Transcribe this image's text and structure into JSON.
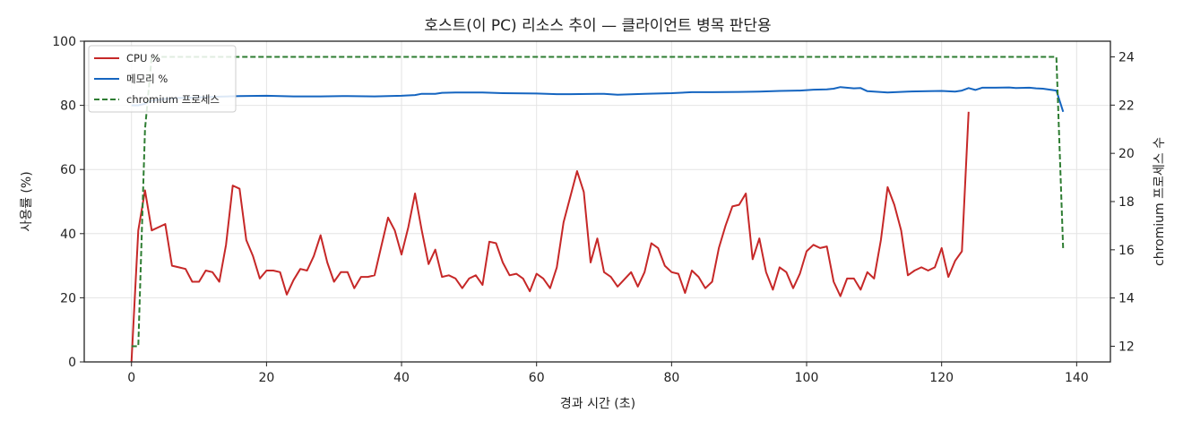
{
  "chart_data": {
    "type": "line",
    "title": "호스트(이 PC) 리소스 추이 — 클라이언트 병목 판단용",
    "xlabel": "경과 시간 (초)",
    "ylabel": "사용률 (%)",
    "y2label": "chromium 프로세스 수",
    "xlim": [
      -7,
      145
    ],
    "ylim": [
      0,
      100
    ],
    "y2lim": [
      11.35,
      24.65
    ],
    "x_ticks": [
      "0",
      "20",
      "40",
      "60",
      "80",
      "100",
      "120",
      "140"
    ],
    "y_ticks": [
      "0",
      "20",
      "40",
      "60",
      "80",
      "100"
    ],
    "y2_ticks": [
      "12",
      "14",
      "16",
      "18",
      "20",
      "22",
      "24"
    ],
    "grid": true,
    "legend_position": "top-left",
    "colors": {
      "cpu": "#c62828",
      "mem": "#1565c0",
      "proc": "#2e7d32"
    },
    "series": [
      {
        "name": "CPU %",
        "axis": "left",
        "points": [
          [
            0,
            0
          ],
          [
            1,
            41
          ],
          [
            2,
            53.5
          ],
          [
            3,
            41
          ],
          [
            5,
            43
          ],
          [
            6,
            30
          ],
          [
            7,
            29.5
          ],
          [
            8,
            29
          ],
          [
            9,
            25
          ],
          [
            10,
            25
          ],
          [
            11,
            28.5
          ],
          [
            12,
            28
          ],
          [
            13,
            25
          ],
          [
            14,
            36.5
          ],
          [
            15,
            55
          ],
          [
            16,
            54
          ],
          [
            17,
            38
          ],
          [
            18,
            33
          ],
          [
            19,
            26
          ],
          [
            20,
            28.5
          ],
          [
            21,
            28.5
          ],
          [
            22,
            28
          ],
          [
            23,
            21
          ],
          [
            24,
            25.5
          ],
          [
            25,
            29
          ],
          [
            26,
            28.5
          ],
          [
            27,
            33
          ],
          [
            28,
            39.5
          ],
          [
            29,
            31
          ],
          [
            30,
            25
          ],
          [
            31,
            28
          ],
          [
            32,
            28
          ],
          [
            33,
            23
          ],
          [
            34,
            26.5
          ],
          [
            35,
            26.5
          ],
          [
            36,
            27
          ],
          [
            37,
            36
          ],
          [
            38,
            45
          ],
          [
            39,
            41
          ],
          [
            40,
            33.5
          ],
          [
            41,
            42
          ],
          [
            42,
            52.5
          ],
          [
            43,
            41
          ],
          [
            44,
            30.5
          ],
          [
            45,
            35
          ],
          [
            46,
            26.5
          ],
          [
            47,
            27
          ],
          [
            48,
            26
          ],
          [
            49,
            23
          ],
          [
            50,
            26
          ],
          [
            51,
            27
          ],
          [
            52,
            24
          ],
          [
            53,
            37.5
          ],
          [
            54,
            37
          ],
          [
            55,
            31
          ],
          [
            56,
            27
          ],
          [
            57,
            27.5
          ],
          [
            58,
            26
          ],
          [
            59,
            22
          ],
          [
            60,
            27.5
          ],
          [
            61,
            26
          ],
          [
            62,
            23
          ],
          [
            63,
            29.5
          ],
          [
            64,
            43.5
          ],
          [
            66,
            59.5
          ],
          [
            67,
            53
          ],
          [
            68,
            31
          ],
          [
            69,
            38.5
          ],
          [
            70,
            28
          ],
          [
            71,
            26.5
          ],
          [
            72,
            23.5
          ],
          [
            74,
            28
          ],
          [
            75,
            23.5
          ],
          [
            76,
            28
          ],
          [
            77,
            37
          ],
          [
            78,
            35.5
          ],
          [
            79,
            30
          ],
          [
            80,
            28
          ],
          [
            81,
            27.5
          ],
          [
            82,
            21.5
          ],
          [
            83,
            28.5
          ],
          [
            84,
            26.5
          ],
          [
            85,
            23
          ],
          [
            86,
            25
          ],
          [
            87,
            35.5
          ],
          [
            88,
            42.5
          ],
          [
            89,
            48.5
          ],
          [
            90,
            49
          ],
          [
            91,
            52.5
          ],
          [
            92,
            32
          ],
          [
            93,
            38.5
          ],
          [
            94,
            28
          ],
          [
            95,
            22.5
          ],
          [
            96,
            29.5
          ],
          [
            97,
            28
          ],
          [
            98,
            23
          ],
          [
            99,
            27.5
          ],
          [
            100,
            34.5
          ],
          [
            101,
            36.5
          ],
          [
            102,
            35.5
          ],
          [
            103,
            36
          ],
          [
            104,
            25
          ],
          [
            105,
            20.5
          ],
          [
            106,
            26
          ],
          [
            107,
            26
          ],
          [
            108,
            22.5
          ],
          [
            109,
            28
          ],
          [
            110,
            26
          ],
          [
            111,
            38
          ],
          [
            112,
            54.5
          ],
          [
            113,
            49
          ],
          [
            114,
            41
          ],
          [
            115,
            27
          ],
          [
            116,
            28.5
          ],
          [
            117,
            29.5
          ],
          [
            118,
            28.5
          ],
          [
            119,
            29.5
          ],
          [
            120,
            35.5
          ],
          [
            121,
            26.5
          ],
          [
            122,
            31.5
          ],
          [
            123,
            34.5
          ],
          [
            124,
            78
          ]
        ]
      },
      {
        "name": "메모리 %",
        "axis": "left",
        "points": [
          [
            0,
            80
          ],
          [
            1,
            80
          ],
          [
            2,
            80.5
          ],
          [
            3,
            81.5
          ],
          [
            5,
            82
          ],
          [
            7,
            82.3
          ],
          [
            10,
            82.5
          ],
          [
            13,
            82.7
          ],
          [
            16,
            82.9
          ],
          [
            20,
            83
          ],
          [
            24,
            82.8
          ],
          [
            28,
            82.8
          ],
          [
            32,
            82.9
          ],
          [
            36,
            82.8
          ],
          [
            40,
            83
          ],
          [
            42,
            83.2
          ],
          [
            43,
            83.6
          ],
          [
            45,
            83.6
          ],
          [
            46,
            83.9
          ],
          [
            48,
            84
          ],
          [
            52,
            84
          ],
          [
            55,
            83.8
          ],
          [
            60,
            83.7
          ],
          [
            63,
            83.5
          ],
          [
            65,
            83.5
          ],
          [
            69,
            83.6
          ],
          [
            70,
            83.6
          ],
          [
            72,
            83.3
          ],
          [
            76,
            83.6
          ],
          [
            80,
            83.8
          ],
          [
            83,
            84.1
          ],
          [
            86,
            84.1
          ],
          [
            90,
            84.2
          ],
          [
            93,
            84.3
          ],
          [
            96,
            84.5
          ],
          [
            99,
            84.6
          ],
          [
            101,
            84.9
          ],
          [
            103,
            85
          ],
          [
            104,
            85.2
          ],
          [
            105,
            85.7
          ],
          [
            107,
            85.3
          ],
          [
            108,
            85.4
          ],
          [
            109,
            84.4
          ],
          [
            112,
            84
          ],
          [
            115,
            84.3
          ],
          [
            118,
            84.4
          ],
          [
            120,
            84.5
          ],
          [
            122,
            84.3
          ],
          [
            123,
            84.6
          ],
          [
            124,
            85.4
          ],
          [
            125,
            84.8
          ],
          [
            126,
            85.5
          ],
          [
            128,
            85.5
          ],
          [
            130,
            85.6
          ],
          [
            131,
            85.4
          ],
          [
            133,
            85.5
          ],
          [
            134,
            85.3
          ],
          [
            135,
            85.2
          ],
          [
            137,
            84.6
          ],
          [
            138,
            78
          ]
        ]
      },
      {
        "name": "chromium 프로세스",
        "axis": "right",
        "points": [
          [
            0,
            12
          ],
          [
            1,
            12
          ],
          [
            2,
            21
          ],
          [
            3,
            24
          ],
          [
            5,
            24
          ],
          [
            137,
            24
          ],
          [
            138,
            16
          ]
        ]
      }
    ]
  }
}
